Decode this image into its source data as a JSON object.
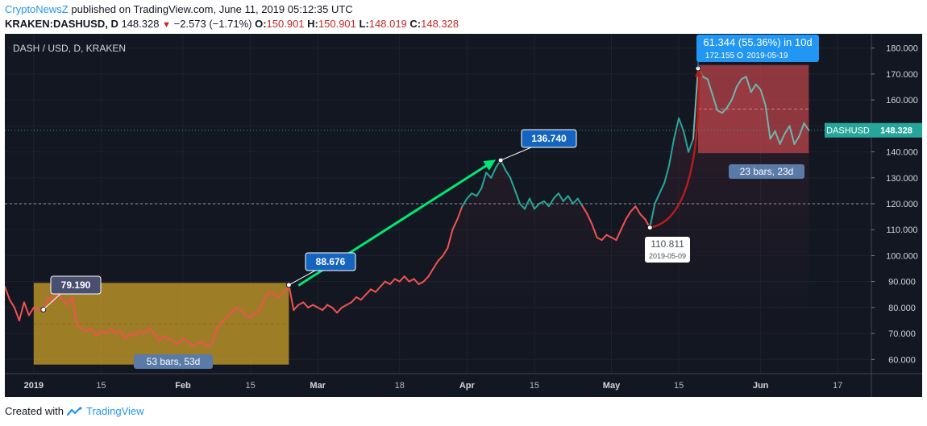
{
  "header": {
    "publisher": "CryptoNewsZ",
    "published_text": "published on TradingView.com, June 11, 2019 05:12:35 UTC",
    "symbol": "KRAKEN:DASHUSD, D",
    "last": "148.328",
    "change": "−2.573 (−1.71%)",
    "open_label": "O:",
    "open": "150.901",
    "high_label": "H:",
    "high": "150.901",
    "low_label": "L:",
    "low": "148.019",
    "close_label": "C:",
    "close": "148.328"
  },
  "footer": {
    "created_with": "Created with",
    "brand": "TradingView"
  },
  "colors": {
    "background": "#131722",
    "down": "#ef5350",
    "up": "#26a69a",
    "up_pale": "#6fb5ad",
    "range_box": "#d4a52a",
    "target_box": "#c4464c",
    "arrow": "#00e676",
    "callout": "#1565c0",
    "price_tag": "#26a69a",
    "measure": "#5a7aa8"
  },
  "chart_data": {
    "type": "line",
    "title": "DASH / USD, D, KRAKEN",
    "symbol_tag": "DASHUSD",
    "last_price": "148.328",
    "y_ticks": [
      "180.000",
      "170.000",
      "160.000",
      "150.000",
      "140.000",
      "130.000",
      "120.000",
      "110.000",
      "100.000",
      "90.000",
      "80.000",
      "70.000",
      "60.000"
    ],
    "ylim": [
      54.5,
      185.5
    ],
    "x_ticks": [
      {
        "label": "2019",
        "date": "2019-01-01"
      },
      {
        "label": "15",
        "date": "2019-01-15"
      },
      {
        "label": "Feb",
        "date": "2019-02-01"
      },
      {
        "label": "15",
        "date": "2019-02-15"
      },
      {
        "label": "Mar",
        "date": "2019-03-01"
      },
      {
        "label": "18",
        "date": "2019-03-18"
      },
      {
        "label": "Apr",
        "date": "2019-04-01"
      },
      {
        "label": "15",
        "date": "2019-04-15"
      },
      {
        "label": "May",
        "date": "2019-05-01"
      },
      {
        "label": "15",
        "date": "2019-05-15"
      },
      {
        "label": "Jun",
        "date": "2019-06-01"
      },
      {
        "label": "17",
        "date": "2019-06-17"
      }
    ],
    "xlim": [
      "2018-12-26",
      "2019-06-24"
    ],
    "series": [
      {
        "points": [
          [
            "2018-12-26",
            88
          ],
          [
            "2018-12-27",
            83
          ],
          [
            "2018-12-28",
            80
          ],
          [
            "2018-12-29",
            75
          ],
          [
            "2018-12-30",
            82
          ],
          [
            "2018-12-31",
            77
          ],
          [
            "2019-01-01",
            80
          ],
          [
            "2019-01-02",
            79
          ],
          [
            "2019-01-03",
            79.19
          ],
          [
            "2019-01-04",
            84
          ],
          [
            "2019-01-05",
            82
          ],
          [
            "2019-01-06",
            86
          ],
          [
            "2019-01-07",
            83
          ],
          [
            "2019-01-08",
            81
          ],
          [
            "2019-01-09",
            84
          ],
          [
            "2019-01-10",
            73
          ],
          [
            "2019-01-11",
            72
          ],
          [
            "2019-01-12",
            71
          ],
          [
            "2019-01-13",
            72
          ],
          [
            "2019-01-14",
            69
          ],
          [
            "2019-01-15",
            71
          ],
          [
            "2019-01-16",
            70
          ],
          [
            "2019-01-17",
            72
          ],
          [
            "2019-01-18",
            70
          ],
          [
            "2019-01-19",
            71
          ],
          [
            "2019-01-20",
            68
          ],
          [
            "2019-01-21",
            70
          ],
          [
            "2019-01-22",
            69
          ],
          [
            "2019-01-23",
            71
          ],
          [
            "2019-01-24",
            70
          ],
          [
            "2019-01-25",
            72
          ],
          [
            "2019-01-26",
            70
          ],
          [
            "2019-01-27",
            67
          ],
          [
            "2019-01-28",
            69
          ],
          [
            "2019-01-29",
            68
          ],
          [
            "2019-01-30",
            67
          ],
          [
            "2019-01-31",
            66
          ],
          [
            "2019-02-01",
            68
          ],
          [
            "2019-02-02",
            67
          ],
          [
            "2019-02-03",
            65
          ],
          [
            "2019-02-04",
            66
          ],
          [
            "2019-02-05",
            67
          ],
          [
            "2019-02-06",
            65
          ],
          [
            "2019-02-07",
            66
          ],
          [
            "2019-02-08",
            72
          ],
          [
            "2019-02-09",
            74
          ],
          [
            "2019-02-10",
            76
          ],
          [
            "2019-02-11",
            78
          ],
          [
            "2019-02-12",
            80
          ],
          [
            "2019-02-13",
            79
          ],
          [
            "2019-02-14",
            77
          ],
          [
            "2019-02-15",
            76
          ],
          [
            "2019-02-16",
            78
          ],
          [
            "2019-02-17",
            79
          ],
          [
            "2019-02-18",
            84
          ],
          [
            "2019-02-19",
            86
          ],
          [
            "2019-02-20",
            85
          ],
          [
            "2019-02-21",
            84
          ],
          [
            "2019-02-22",
            86
          ],
          [
            "2019-02-23",
            88.676
          ],
          [
            "2019-02-24",
            79
          ],
          [
            "2019-02-25",
            81
          ],
          [
            "2019-02-26",
            82
          ],
          [
            "2019-02-27",
            80
          ],
          [
            "2019-02-28",
            81
          ],
          [
            "2019-03-01",
            80
          ],
          [
            "2019-03-02",
            79
          ],
          [
            "2019-03-03",
            81
          ],
          [
            "2019-03-04",
            80
          ],
          [
            "2019-03-05",
            78
          ],
          [
            "2019-03-06",
            80
          ],
          [
            "2019-03-07",
            81
          ],
          [
            "2019-03-08",
            82
          ],
          [
            "2019-03-09",
            84
          ],
          [
            "2019-03-10",
            83
          ],
          [
            "2019-03-11",
            85
          ],
          [
            "2019-03-12",
            87
          ],
          [
            "2019-03-13",
            86
          ],
          [
            "2019-03-14",
            88
          ],
          [
            "2019-03-15",
            90
          ],
          [
            "2019-03-16",
            89
          ],
          [
            "2019-03-17",
            91
          ],
          [
            "2019-03-18",
            90
          ],
          [
            "2019-03-19",
            92
          ],
          [
            "2019-03-20",
            90
          ],
          [
            "2019-03-21",
            91
          ],
          [
            "2019-03-22",
            89
          ],
          [
            "2019-03-23",
            90
          ],
          [
            "2019-03-24",
            92
          ],
          [
            "2019-03-25",
            95
          ],
          [
            "2019-03-26",
            98
          ],
          [
            "2019-03-27",
            100
          ],
          [
            "2019-03-28",
            103
          ],
          [
            "2019-03-29",
            110
          ],
          [
            "2019-03-30",
            114
          ],
          [
            "2019-03-31",
            119
          ],
          [
            "2019-04-01",
            122
          ],
          [
            "2019-04-02",
            124
          ],
          [
            "2019-04-03",
            123
          ],
          [
            "2019-04-04",
            126
          ],
          [
            "2019-04-05",
            132
          ],
          [
            "2019-04-06",
            130
          ],
          [
            "2019-04-07",
            134
          ],
          [
            "2019-04-08",
            136.74
          ],
          [
            "2019-04-09",
            133
          ],
          [
            "2019-04-10",
            130
          ],
          [
            "2019-04-11",
            125
          ],
          [
            "2019-04-12",
            120
          ],
          [
            "2019-04-13",
            118
          ],
          [
            "2019-04-14",
            122
          ],
          [
            "2019-04-15",
            118
          ],
          [
            "2019-04-16",
            120
          ],
          [
            "2019-04-17",
            121
          ],
          [
            "2019-04-18",
            119
          ],
          [
            "2019-04-19",
            122
          ],
          [
            "2019-04-20",
            124
          ],
          [
            "2019-04-21",
            121
          ],
          [
            "2019-04-22",
            123
          ],
          [
            "2019-04-23",
            120
          ],
          [
            "2019-04-24",
            122
          ],
          [
            "2019-04-25",
            119
          ],
          [
            "2019-04-26",
            116
          ],
          [
            "2019-04-27",
            112
          ],
          [
            "2019-04-28",
            107
          ],
          [
            "2019-04-29",
            106
          ],
          [
            "2019-04-30",
            108
          ],
          [
            "2019-05-01",
            107
          ],
          [
            "2019-05-02",
            106
          ],
          [
            "2019-05-03",
            110
          ],
          [
            "2019-05-04",
            114
          ],
          [
            "2019-05-05",
            117
          ],
          [
            "2019-05-06",
            119
          ],
          [
            "2019-05-07",
            116
          ],
          [
            "2019-05-08",
            114
          ],
          [
            "2019-05-09",
            110.811
          ],
          [
            "2019-05-10",
            120
          ],
          [
            "2019-05-11",
            124
          ],
          [
            "2019-05-12",
            128
          ],
          [
            "2019-05-13",
            135
          ],
          [
            "2019-05-14",
            145
          ],
          [
            "2019-05-15",
            153
          ],
          [
            "2019-05-16",
            148
          ],
          [
            "2019-05-17",
            140
          ],
          [
            "2019-05-18",
            145
          ],
          [
            "2019-05-19",
            172.155
          ],
          [
            "2019-05-20",
            169
          ],
          [
            "2019-05-21",
            168
          ],
          [
            "2019-05-22",
            162
          ],
          [
            "2019-05-23",
            156
          ],
          [
            "2019-05-24",
            155
          ],
          [
            "2019-05-25",
            157
          ],
          [
            "2019-05-26",
            160
          ],
          [
            "2019-05-27",
            165
          ],
          [
            "2019-05-28",
            168
          ],
          [
            "2019-05-29",
            169
          ],
          [
            "2019-05-30",
            163
          ],
          [
            "2019-05-31",
            166
          ],
          [
            "2019-06-01",
            164
          ],
          [
            "2019-06-02",
            158
          ],
          [
            "2019-06-03",
            145
          ],
          [
            "2019-06-04",
            148
          ],
          [
            "2019-06-05",
            143
          ],
          [
            "2019-06-06",
            147
          ],
          [
            "2019-06-07",
            150
          ],
          [
            "2019-06-08",
            143
          ],
          [
            "2019-06-09",
            146
          ],
          [
            "2019-06-10",
            151
          ],
          [
            "2019-06-11",
            148.328
          ]
        ]
      }
    ],
    "annotations": {
      "range_box_1": {
        "start": "2019-01-01",
        "end": "2019-02-23",
        "low": 58,
        "high": 89.5,
        "label": "53 bars, 53d"
      },
      "callout_low": {
        "value": "79.190",
        "date": "2019-01-03",
        "price": 79.19
      },
      "callout_mid": {
        "value": "88.676",
        "date": "2019-02-23",
        "price": 88.676
      },
      "callout_peak": {
        "value": "136.740",
        "date": "2019-04-08",
        "price": 136.74
      },
      "arrow": {
        "from": [
          "2019-02-25",
          88.5
        ],
        "to": [
          "2019-04-07",
          137
        ]
      },
      "low_label": {
        "value": "110.811",
        "date_label": "2019-05-09",
        "date": "2019-05-09",
        "price": 110.811
      },
      "high_callout": {
        "value": "61.344 (55.36%) in 10d",
        "price_text": "172.155",
        "date_label": "2019-05-19",
        "date": "2019-05-19",
        "price": 172.155
      },
      "range_box_2": {
        "start": "2019-05-19",
        "end": "2019-06-11",
        "low": 139.5,
        "high": 173.5,
        "label": "23 bars, 23d"
      },
      "horizontal_line": 120
    }
  }
}
